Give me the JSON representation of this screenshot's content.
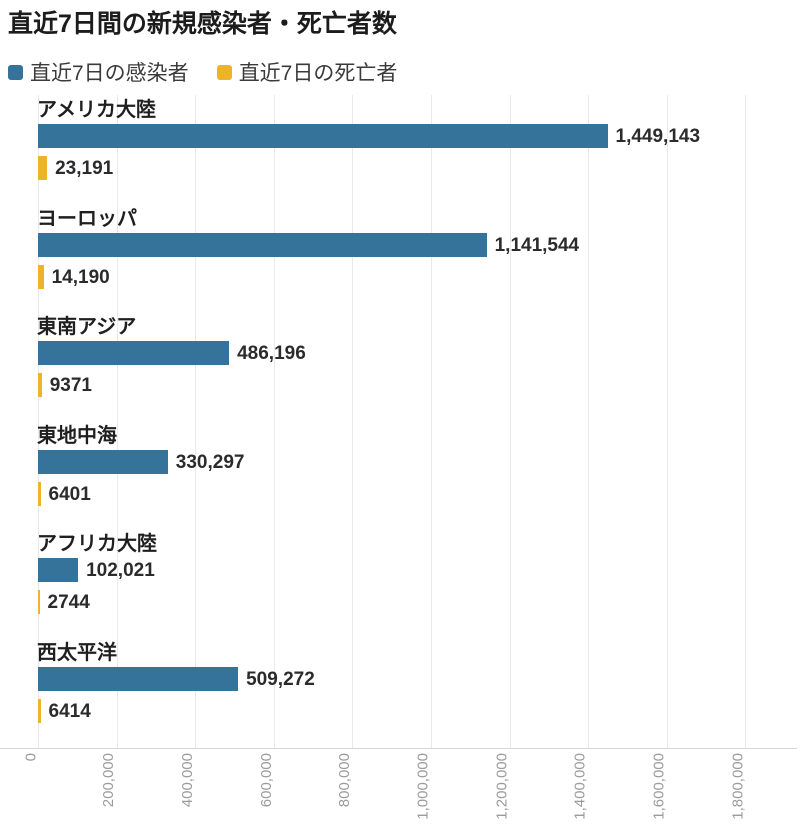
{
  "title": "直近7日間の新規感染者・死亡者数",
  "legend": [
    {
      "label": "直近7日の感染者",
      "color": "#35739B"
    },
    {
      "label": "直近7日の死亡者",
      "color": "#EDB32B"
    }
  ],
  "chart_data": {
    "type": "bar",
    "orientation": "horizontal",
    "title": "直近7日間の新規感染者・死亡者数",
    "categories": [
      "アメリカ大陸",
      "ヨーロッパ",
      "東南アジア",
      "東地中海",
      "アフリカ大陸",
      "西太平洋"
    ],
    "series": [
      {
        "name": "直近7日の感染者",
        "color": "#35739B",
        "values": [
          1449143,
          1141544,
          486196,
          330297,
          102021,
          509272
        ],
        "labels": [
          "1,449,143",
          "1,141,544",
          "486,196",
          "330,297",
          "102,021",
          "509,272"
        ]
      },
      {
        "name": "直近7日の死亡者",
        "color": "#EDB32B",
        "values": [
          23191,
          14190,
          9371,
          6401,
          2744,
          6414
        ],
        "labels": [
          "23,191",
          "14,190",
          "9371",
          "6401",
          "2744",
          "6414"
        ]
      }
    ],
    "x_ticks": [
      0,
      200000,
      400000,
      600000,
      800000,
      1000000,
      1200000,
      1400000,
      1600000,
      1800000
    ],
    "x_tick_labels": [
      "0",
      "200,000",
      "400,000",
      "600,000",
      "800,000",
      "1,000,000",
      "1,200,000",
      "1,400,000",
      "1,600,000",
      "1,800,000"
    ],
    "xlim": [
      0,
      1940000
    ],
    "grid": true,
    "legend_position": "top",
    "tick_label_rotation": -90
  }
}
